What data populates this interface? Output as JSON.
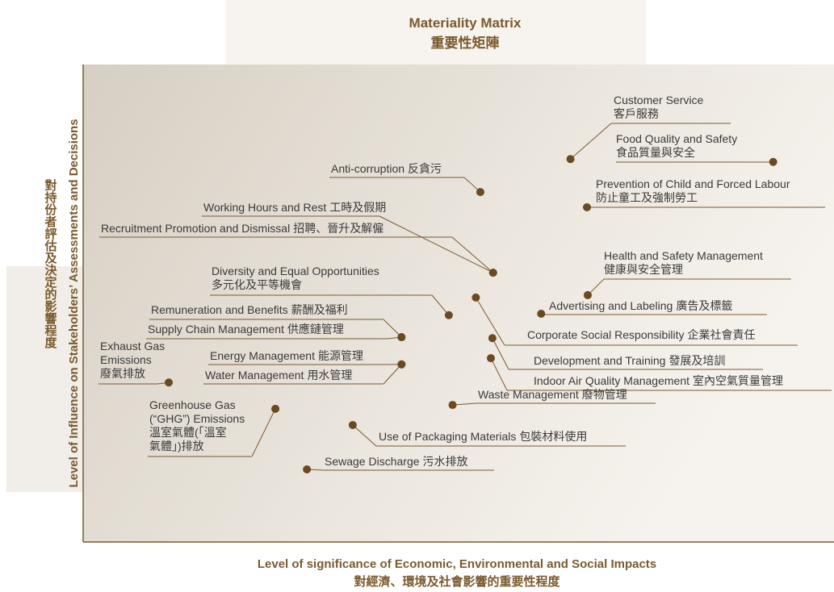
{
  "chart_data": {
    "type": "scatter",
    "title": "Materiality Matrix",
    "title_zh": "重要性矩陣",
    "x_label": "Level of significance of Economic, Environmental and Social Impacts",
    "x_label_zh": "對經濟、環境及社會影響的重要性程度",
    "y_label": "Level of Influence on Stakeholders’ Assessments and Decisions",
    "y_label_zh": "對持份者評估及決定的影響程度",
    "xlim": [
      0,
      100
    ],
    "ylim": [
      0,
      100
    ],
    "color": "#6b4a22",
    "points": [
      {
        "label": [
          "Customer Service",
          "客戶服務"
        ],
        "x": 64.9,
        "y": 80.2
      },
      {
        "label": [
          "Food Quality and Safety",
          "食品質量與安全"
        ],
        "x": 91.9,
        "y": 79.6
      },
      {
        "label": [
          "Prevention of Child and Forced Labour",
          "防止童工及強制勞工"
        ],
        "x": 67.1,
        "y": 70.1
      },
      {
        "label": [
          "Anti-corruption",
          "反貪污"
        ],
        "x": 52.9,
        "y": 73.3
      },
      {
        "label": [
          "Working Hours and Rest",
          "工時及假期"
        ],
        "x": 54.6,
        "y": 56.4
      },
      {
        "label": [
          "Recruitment Promotion and Dismissal",
          "招聘、晉升及解僱"
        ],
        "x": 54.6,
        "y": 56.4
      },
      {
        "label": [
          "Diversity and Equal Opportunities",
          "多元化及平等機會"
        ],
        "x": 48.7,
        "y": 47.5
      },
      {
        "label": [
          "Health and Safety Management",
          "健康與安全管理"
        ],
        "x": 67.2,
        "y": 51.7
      },
      {
        "label": [
          "Advertising and Labeling",
          "廣告及標籤"
        ],
        "x": 61.0,
        "y": 47.8
      },
      {
        "label": [
          "Corporate Social Responsibility",
          "企業社會責任"
        ],
        "x": 52.3,
        "y": 51.2
      },
      {
        "label": [
          "Remuneration and Benefits",
          "薪酬及福利"
        ],
        "x": 42.4,
        "y": 42.9
      },
      {
        "label": [
          "Supply Chain Management",
          "供應鏈管理"
        ],
        "x": 42.4,
        "y": 42.9
      },
      {
        "label": [
          "Development and Training",
          "發展及培訓"
        ],
        "x": 54.5,
        "y": 42.7
      },
      {
        "label": [
          "Indoor Air Quality Management",
          "室內空氣質量管理"
        ],
        "x": 54.3,
        "y": 38.5
      },
      {
        "label": [
          "Energy Management",
          "能源管理"
        ],
        "x": 42.4,
        "y": 37.2
      },
      {
        "label": [
          "Water Management",
          "用水管理"
        ],
        "x": 42.4,
        "y": 37.2
      },
      {
        "label": [
          "Exhaust Gas",
          "Emissions",
          "廢氣排放"
        ],
        "x": 11.4,
        "y": 33.4
      },
      {
        "label": [
          "Greenhouse Gas",
          "(“GHG”) Emissions",
          "溫室氣體(「溫室",
          "氣體」)排放"
        ],
        "x": 25.6,
        "y": 27.9
      },
      {
        "label": [
          "Waste Management",
          "廢物管理"
        ],
        "x": 49.2,
        "y": 28.7
      },
      {
        "label": [
          "Use of Packaging Materials",
          "包裝材料使用"
        ],
        "x": 35.9,
        "y": 24.5
      },
      {
        "label": [
          "Sewage Discharge",
          "污水排放"
        ],
        "x": 29.8,
        "y": 15.2
      }
    ]
  }
}
